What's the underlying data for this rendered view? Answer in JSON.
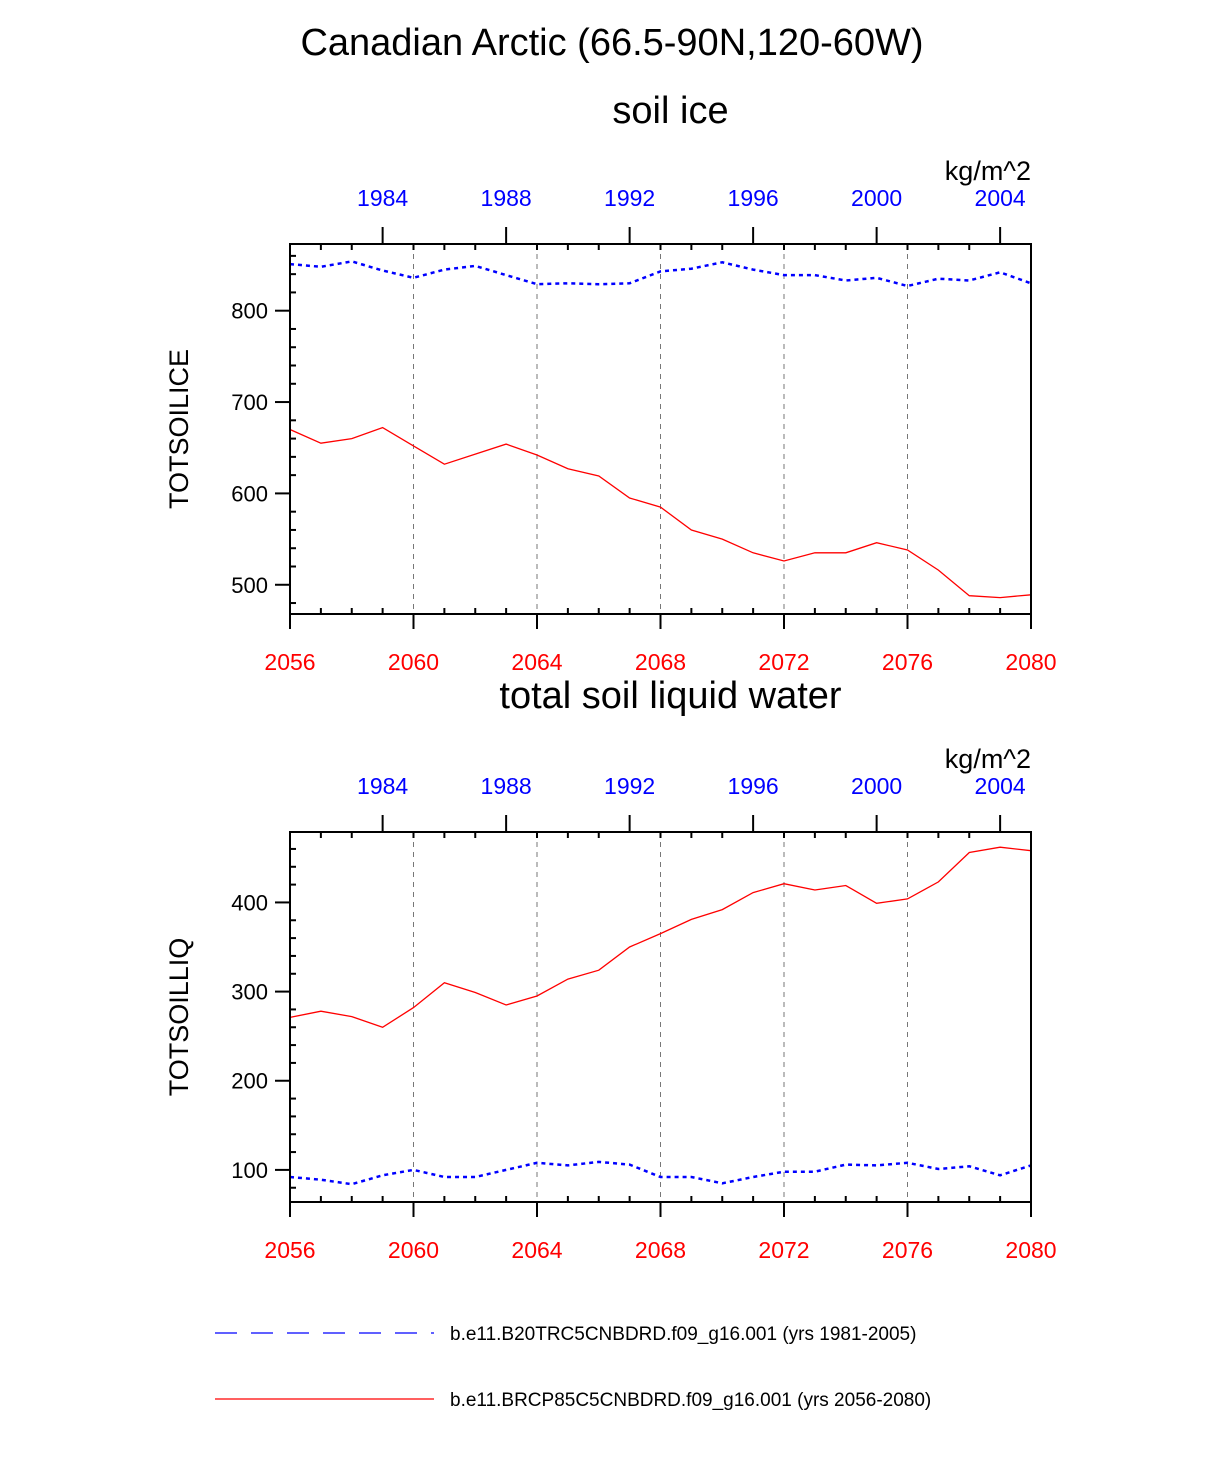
{
  "main_title": "Canadian Arctic (66.5-90N,120-60W)",
  "colors": {
    "future": "#ff0000",
    "historical": "#0000ff",
    "axis": "#000000"
  },
  "legend": [
    {
      "label": "b.e11.B20TRC5CNBDRD.f09_g16.001 (yrs 1981-2005)",
      "color": "#0000ff",
      "style": "dashed"
    },
    {
      "label": "b.e11.BRCP85C5CNBDRD.f09_g16.001 (yrs 2056-2080)",
      "color": "#ff0000",
      "style": "solid"
    }
  ],
  "chart_data": [
    {
      "type": "line",
      "title": "soil ice",
      "ylabel": "TOTSOILICE",
      "units": "kg/m^2",
      "ylim": [
        468,
        873
      ],
      "yticks": [
        500,
        600,
        700,
        800
      ],
      "x_bottom": {
        "range": [
          2056,
          2080
        ],
        "ticks": [
          2056,
          2060,
          2064,
          2068,
          2072,
          2076,
          2080
        ]
      },
      "x_top": {
        "range": [
          1981,
          2005
        ],
        "ticks": [
          1984,
          1988,
          1992,
          1996,
          2000,
          2004
        ]
      },
      "grid": "vertical dashed at bottom major ticks",
      "series": [
        {
          "axis": "bottom",
          "color": "#ff0000",
          "style": "solid",
          "x": [
            2056,
            2057,
            2058,
            2059,
            2060,
            2061,
            2062,
            2063,
            2064,
            2065,
            2066,
            2067,
            2068,
            2069,
            2070,
            2071,
            2072,
            2073,
            2074,
            2075,
            2076,
            2077,
            2078,
            2079,
            2080
          ],
          "y": [
            670,
            655,
            660,
            672,
            652,
            632,
            643,
            654,
            642,
            627,
            619,
            595,
            585,
            560,
            550,
            535,
            526,
            535,
            535,
            546,
            538,
            516,
            488,
            486,
            489
          ]
        },
        {
          "axis": "top",
          "color": "#0000ff",
          "style": "dashed",
          "x": [
            1981,
            1982,
            1983,
            1984,
            1985,
            1986,
            1987,
            1988,
            1989,
            1990,
            1991,
            1992,
            1993,
            1994,
            1995,
            1996,
            1997,
            1998,
            1999,
            2000,
            2001,
            2002,
            2003,
            2004,
            2005
          ],
          "y": [
            851,
            848,
            854,
            844,
            836,
            845,
            849,
            839,
            829,
            830,
            829,
            830,
            843,
            846,
            853,
            845,
            839,
            839,
            833,
            836,
            827,
            835,
            833,
            842,
            830
          ]
        }
      ]
    },
    {
      "type": "line",
      "title": "total soil liquid water",
      "ylabel": "TOTSOILLIQ",
      "units": "kg/m^2",
      "ylim": [
        64,
        479
      ],
      "yticks": [
        100,
        200,
        300,
        400
      ],
      "x_bottom": {
        "range": [
          2056,
          2080
        ],
        "ticks": [
          2056,
          2060,
          2064,
          2068,
          2072,
          2076,
          2080
        ]
      },
      "x_top": {
        "range": [
          1981,
          2005
        ],
        "ticks": [
          1984,
          1988,
          1992,
          1996,
          2000,
          2004
        ]
      },
      "grid": "vertical dashed at bottom major ticks",
      "series": [
        {
          "axis": "bottom",
          "color": "#ff0000",
          "style": "solid",
          "x": [
            2056,
            2057,
            2058,
            2059,
            2060,
            2061,
            2062,
            2063,
            2064,
            2065,
            2066,
            2067,
            2068,
            2069,
            2070,
            2071,
            2072,
            2073,
            2074,
            2075,
            2076,
            2077,
            2078,
            2079,
            2080
          ],
          "y": [
            271,
            278,
            272,
            260,
            282,
            310,
            299,
            285,
            295,
            314,
            324,
            350,
            365,
            381,
            392,
            411,
            421,
            414,
            419,
            399,
            404,
            423,
            456,
            462,
            458
          ]
        },
        {
          "axis": "top",
          "color": "#0000ff",
          "style": "dashed",
          "x": [
            1981,
            1982,
            1983,
            1984,
            1985,
            1986,
            1987,
            1988,
            1989,
            1990,
            1991,
            1992,
            1993,
            1994,
            1995,
            1996,
            1997,
            1998,
            1999,
            2000,
            2001,
            2002,
            2003,
            2004,
            2005
          ],
          "y": [
            92,
            89,
            84,
            94,
            100,
            92,
            92,
            100,
            108,
            105,
            109,
            106,
            92,
            92,
            85,
            92,
            98,
            98,
            106,
            105,
            108,
            101,
            104,
            94,
            105
          ]
        }
      ]
    }
  ]
}
